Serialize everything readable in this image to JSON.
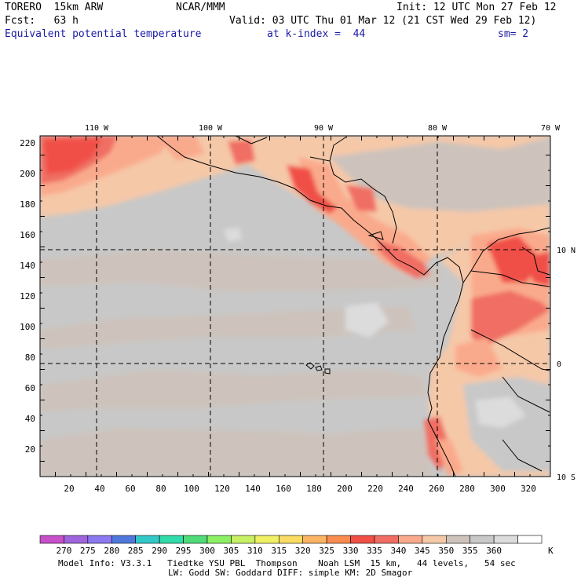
{
  "header": {
    "model": "TORERO  15km ARW",
    "center": "NCAR/MMM",
    "init": "Init: 12 UTC Mon 27 Feb 12",
    "fcst": "Fcst:   63 h",
    "valid": "Valid: 03 UTC Thu 01 Mar 12 (21 CST Wed 29 Feb 12)",
    "field": "Equivalent potential temperature",
    "level": "at k-index =  44",
    "smoothing": "sm= 2"
  },
  "map": {
    "lon_labels": [
      "110 W",
      "100 W",
      "90 W",
      "80 W",
      "70 W"
    ],
    "lat_labels": [
      "10 N",
      "0",
      "10 S"
    ],
    "x_ticks": [
      "20",
      "40",
      "60",
      "80",
      "100",
      "120",
      "140",
      "160",
      "180",
      "200",
      "220",
      "240",
      "260",
      "280",
      "300",
      "320"
    ],
    "y_ticks": [
      "20",
      "40",
      "60",
      "80",
      "100",
      "120",
      "140",
      "160",
      "180",
      "200",
      "220"
    ]
  },
  "colorbar": {
    "levels": [
      "270",
      "275",
      "280",
      "285",
      "290",
      "295",
      "300",
      "305",
      "310",
      "315",
      "320",
      "325",
      "330",
      "335",
      "340",
      "345",
      "350",
      "355",
      "360"
    ],
    "unit": "K",
    "colors": [
      "#c850c8",
      "#a064dc",
      "#8c78f0",
      "#5078dc",
      "#32c8c8",
      "#32dcaa",
      "#50dc78",
      "#8cf064",
      "#c8f064",
      "#f0f064",
      "#fadc64",
      "#fab464",
      "#fa8c50",
      "#f05046",
      "#f06e64",
      "#faaa8c",
      "#f5c8a8",
      "#cdc3bc",
      "#c8c8c8",
      "#dcdcdc",
      "#ffffff"
    ]
  },
  "footer": {
    "line1": "Model Info: V3.3.1   Tiedtke YSU PBL  Thompson    Noah LSM  15 km,   44 levels,   54 sec",
    "line2": "LW: Godd SW: Goddard DIFF: simple KM: 2D Smagor"
  }
}
